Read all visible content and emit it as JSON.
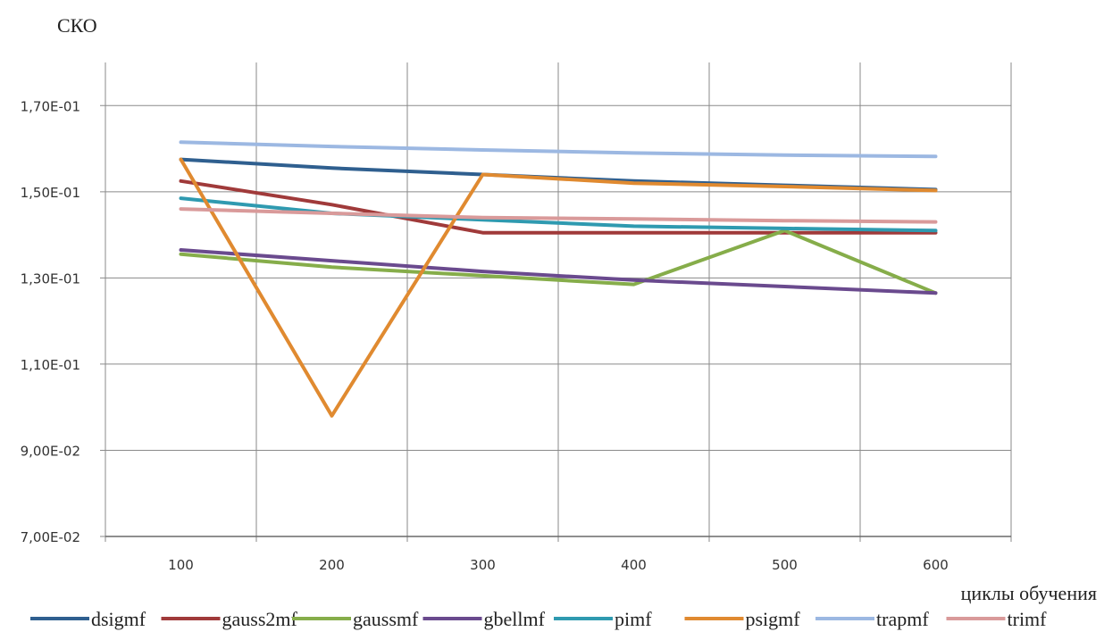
{
  "chart_data": {
    "type": "line",
    "ylabel": "СКО",
    "xlabel": "циклы обучения",
    "x": [
      100,
      200,
      300,
      400,
      500,
      600
    ],
    "ylim": [
      0.07,
      0.18
    ],
    "y_ticks": [
      0.07,
      0.09,
      0.11,
      0.13,
      0.15,
      0.17
    ],
    "y_tick_labels": [
      "7,00E-02",
      "9,00E-02",
      "1,10E-01",
      "1,30E-01",
      "1,50E-01",
      "1,70E-01"
    ],
    "x_tick_labels": [
      "100",
      "200",
      "300",
      "400",
      "500",
      "600"
    ],
    "grid": "vertical and horizontal",
    "legend_position": "bottom",
    "series": [
      {
        "name": "dsigmf",
        "color": "#2f5f8f",
        "values": [
          0.1575,
          0.1555,
          0.154,
          0.1525,
          0.1515,
          0.1505
        ]
      },
      {
        "name": "gauss2mf",
        "color": "#a03a3a",
        "values": [
          0.1525,
          0.147,
          0.1405,
          0.1405,
          0.1405,
          0.1405
        ]
      },
      {
        "name": "gaussmf",
        "color": "#86ad4a",
        "values": [
          0.1355,
          0.1325,
          0.1305,
          0.1285,
          0.141,
          0.1265
        ]
      },
      {
        "name": "gbellmf",
        "color": "#6a4a8e",
        "values": [
          0.1365,
          0.134,
          0.1315,
          0.1295,
          0.128,
          0.1265
        ]
      },
      {
        "name": "pimf",
        "color": "#2f9ab0",
        "values": [
          0.1485,
          0.145,
          0.1435,
          0.142,
          0.1415,
          0.141
        ]
      },
      {
        "name": "psigmf",
        "color": "#e08a30",
        "values": [
          0.1575,
          0.098,
          0.154,
          0.152,
          0.1512,
          0.1503
        ]
      },
      {
        "name": "trapmf",
        "color": "#9cb8e2",
        "values": [
          0.1615,
          0.1605,
          0.1597,
          0.159,
          0.1585,
          0.1582
        ]
      },
      {
        "name": "trimf",
        "color": "#d99a9a",
        "values": [
          0.146,
          0.145,
          0.144,
          0.1437,
          0.1433,
          0.143
        ]
      }
    ]
  }
}
